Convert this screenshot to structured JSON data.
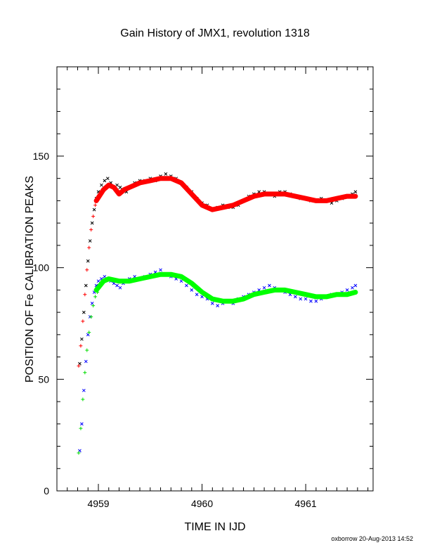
{
  "chart_data": {
    "type": "scatter",
    "title": "Gain History of JMX1, revolution 1318",
    "xlabel": "TIME IN IJD",
    "ylabel": "POSITION OF Fe CALIBRATION PEAKS",
    "xlim": [
      4958.6,
      4961.65
    ],
    "ylim": [
      0,
      190
    ],
    "x_ticks": [
      "4959",
      "4960",
      "4961"
    ],
    "y_ticks": [
      "0",
      "50",
      "100",
      "150"
    ],
    "grid": false,
    "series": [
      {
        "marker": "cross",
        "color": "#000000",
        "x": [
          4958.82,
          4958.84,
          4958.86,
          4958.88,
          4958.9,
          4958.92,
          4958.94,
          4958.96,
          4958.98,
          4959.0,
          4959.03,
          4959.06,
          4959.09,
          4959.12,
          4959.15,
          4959.18,
          4959.21,
          4959.24,
          4959.27,
          4959.3,
          4959.35,
          4959.4,
          4959.45,
          4959.5,
          4959.55,
          4959.6,
          4959.65,
          4959.7,
          4959.75,
          4959.8,
          4959.85,
          4959.9,
          4959.95,
          4960.0,
          4960.05,
          4960.1,
          4960.15,
          4960.2,
          4960.25,
          4960.3,
          4960.35,
          4960.4,
          4960.45,
          4960.5,
          4960.55,
          4960.6,
          4960.65,
          4960.7,
          4960.75,
          4960.8,
          4960.85,
          4960.9,
          4960.95,
          4961.0,
          4961.05,
          4961.1,
          4961.15,
          4961.2,
          4961.25,
          4961.3,
          4961.35,
          4961.4,
          4961.45,
          4961.48
        ],
        "y": [
          57,
          68,
          80,
          92,
          103,
          112,
          120,
          126,
          131,
          134,
          137,
          139,
          140,
          138,
          136,
          137,
          136,
          135,
          134,
          136,
          138,
          139,
          139,
          140,
          139,
          141,
          142,
          141,
          140,
          138,
          136,
          134,
          131,
          129,
          128,
          126,
          127,
          128,
          127,
          127,
          128,
          130,
          132,
          133,
          134,
          134,
          133,
          132,
          134,
          134,
          133,
          132,
          131,
          131,
          130,
          130,
          131,
          130,
          129,
          130,
          131,
          132,
          133,
          134
        ]
      },
      {
        "marker": "plus",
        "color": "#ff0000",
        "x": [
          4958.81,
          4958.83,
          4958.85,
          4958.87,
          4958.89,
          4958.91,
          4958.93,
          4958.95,
          4958.97,
          4958.99,
          4959.01
        ],
        "y": [
          56,
          65,
          76,
          88,
          99,
          109,
          117,
          123,
          128,
          130,
          132
        ]
      },
      {
        "marker": "line",
        "color": "#ff0000",
        "x": [
          4958.98,
          4959.05,
          4959.1,
          4959.15,
          4959.2,
          4959.25,
          4959.3,
          4959.4,
          4959.5,
          4959.6,
          4959.7,
          4959.8,
          4959.9,
          4960.0,
          4960.1,
          4960.2,
          4960.3,
          4960.4,
          4960.5,
          4960.6,
          4960.7,
          4960.8,
          4960.9,
          4961.0,
          4961.1,
          4961.2,
          4961.3,
          4961.4,
          4961.48
        ],
        "y": [
          130,
          135,
          137,
          136,
          133,
          135,
          136,
          138,
          139,
          140,
          140,
          138,
          133,
          128,
          126,
          127,
          128,
          130,
          132,
          133,
          133,
          133,
          132,
          131,
          130,
          130,
          131,
          132,
          132
        ]
      },
      {
        "marker": "cross",
        "color": "#0000ff",
        "x": [
          4958.82,
          4958.84,
          4958.86,
          4958.88,
          4958.9,
          4958.92,
          4958.94,
          4958.96,
          4958.98,
          4959.0,
          4959.03,
          4959.06,
          4959.09,
          4959.12,
          4959.15,
          4959.18,
          4959.21,
          4959.24,
          4959.27,
          4959.3,
          4959.35,
          4959.4,
          4959.45,
          4959.5,
          4959.55,
          4959.6,
          4959.65,
          4959.7,
          4959.75,
          4959.8,
          4959.85,
          4959.9,
          4959.95,
          4960.0,
          4960.05,
          4960.1,
          4960.15,
          4960.2,
          4960.25,
          4960.3,
          4960.35,
          4960.4,
          4960.45,
          4960.5,
          4960.55,
          4960.6,
          4960.65,
          4960.7,
          4960.75,
          4960.8,
          4960.85,
          4960.9,
          4960.95,
          4961.0,
          4961.05,
          4961.1,
          4961.15,
          4961.2,
          4961.25,
          4961.3,
          4961.35,
          4961.4,
          4961.45,
          4961.48
        ],
        "y": [
          18,
          30,
          45,
          58,
          70,
          78,
          84,
          89,
          92,
          94,
          95,
          96,
          95,
          94,
          93,
          92,
          91,
          93,
          94,
          95,
          96,
          95,
          96,
          97,
          98,
          99,
          97,
          96,
          95,
          94,
          92,
          90,
          88,
          87,
          86,
          84,
          83,
          84,
          85,
          84,
          86,
          87,
          88,
          89,
          90,
          91,
          92,
          91,
          90,
          89,
          88,
          87,
          86,
          86,
          85,
          85,
          86,
          87,
          88,
          88,
          89,
          90,
          91,
          92
        ]
      },
      {
        "marker": "plus",
        "color": "#00dd00",
        "x": [
          4958.81,
          4958.83,
          4958.85,
          4958.87,
          4958.89,
          4958.91,
          4958.93,
          4958.95,
          4958.97,
          4958.99,
          4959.01
        ],
        "y": [
          17,
          28,
          41,
          53,
          63,
          71,
          78,
          83,
          87,
          89,
          91
        ]
      },
      {
        "marker": "line",
        "color": "#00ff00",
        "x": [
          4958.98,
          4959.05,
          4959.1,
          4959.2,
          4959.3,
          4959.4,
          4959.5,
          4959.6,
          4959.7,
          4959.8,
          4959.9,
          4960.0,
          4960.1,
          4960.2,
          4960.3,
          4960.4,
          4960.5,
          4960.6,
          4960.7,
          4960.8,
          4960.9,
          4961.0,
          4961.1,
          4961.2,
          4961.3,
          4961.4,
          4961.48
        ],
        "y": [
          90,
          94,
          95,
          94,
          94,
          95,
          96,
          97,
          97,
          96,
          93,
          89,
          86,
          85,
          85,
          86,
          88,
          89,
          90,
          90,
          89,
          88,
          87,
          87,
          88,
          88,
          89
        ]
      }
    ]
  },
  "footer": "oxborrow 20-Aug-2013 14:52"
}
